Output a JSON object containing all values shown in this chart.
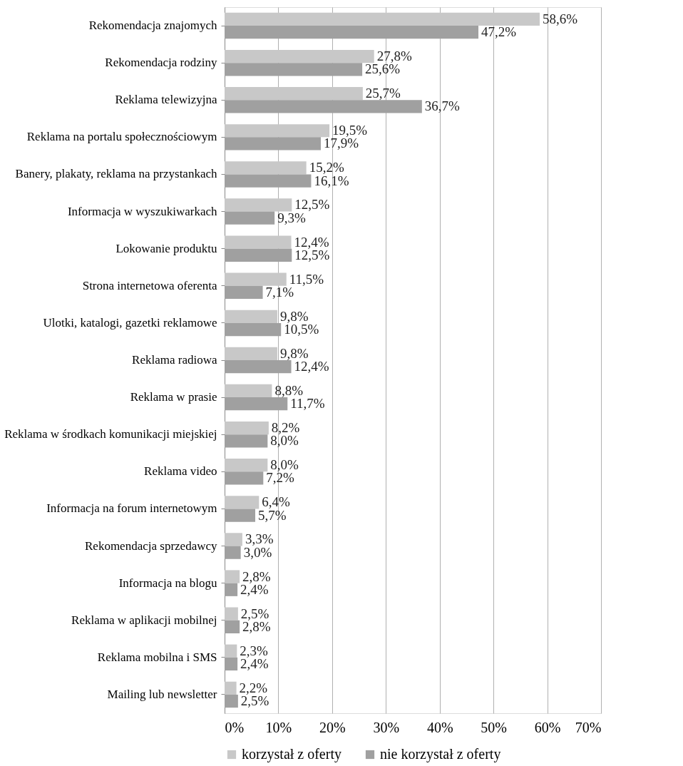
{
  "chart_data": {
    "type": "bar",
    "orientation": "horizontal",
    "categories": [
      "Rekomendacja znajomych",
      "Rekomendacja rodziny",
      "Reklama telewizyjna",
      "Reklama na portalu społecznościowym",
      "Banery, plakaty, reklama na przystankach",
      "Informacja w wyszukiwarkach",
      "Lokowanie produktu",
      "Strona internetowa oferenta",
      "Ulotki, katalogi, gazetki reklamowe",
      "Reklama radiowa",
      "Reklama w prasie",
      "Reklama w środkach komunikacji miejskiej",
      "Reklama video",
      "Informacja na forum internetowym",
      "Rekomendacja sprzedawcy",
      "Informacja na blogu",
      "Reklama w aplikacji mobilnej",
      "Reklama mobilna i SMS",
      "Mailing lub newsletter"
    ],
    "series": [
      {
        "name": "korzystał z oferty",
        "color": "#c8c8c8",
        "values": [
          58.6,
          27.8,
          25.7,
          19.5,
          15.2,
          12.5,
          12.4,
          11.5,
          9.8,
          9.8,
          8.8,
          8.2,
          8.0,
          6.4,
          3.3,
          2.8,
          2.5,
          2.3,
          2.2
        ],
        "value_labels": [
          "58,6%",
          "27,8%",
          "25,7%",
          "19,5%",
          "15,2%",
          "12,5%",
          "12,4%",
          "11,5%",
          "9,8%",
          "9,8%",
          "8,8%",
          "8,2%",
          "8,0%",
          "6,4%",
          "3,3%",
          "2,8%",
          "2,5%",
          "2,3%",
          "2,2%"
        ]
      },
      {
        "name": "nie korzystał z oferty",
        "color": "#a0a0a0",
        "values": [
          47.2,
          25.6,
          36.7,
          17.9,
          16.1,
          9.3,
          12.5,
          7.1,
          10.5,
          12.4,
          11.7,
          8.0,
          7.2,
          5.7,
          3.0,
          2.4,
          2.8,
          2.4,
          2.5
        ],
        "value_labels": [
          "47,2%",
          "25,6%",
          "36,7%",
          "17,9%",
          "16,1%",
          "9,3%",
          "12,5%",
          "7,1%",
          "10,5%",
          "12,4%",
          "11,7%",
          "8,0%",
          "7,2%",
          "5,7%",
          "3,0%",
          "2,4%",
          "2,8%",
          "2,4%",
          "2,5%"
        ]
      }
    ],
    "xlim": [
      0,
      70
    ],
    "xticks": [
      {
        "value": 0,
        "label": "0%"
      },
      {
        "value": 10,
        "label": "10%"
      },
      {
        "value": 20,
        "label": "20%"
      },
      {
        "value": 30,
        "label": "30%"
      },
      {
        "value": 40,
        "label": "40%"
      },
      {
        "value": 50,
        "label": "50%"
      },
      {
        "value": 60,
        "label": "60%"
      },
      {
        "value": 70,
        "label": "70%"
      }
    ],
    "grid": "x",
    "legend": "bottom"
  }
}
